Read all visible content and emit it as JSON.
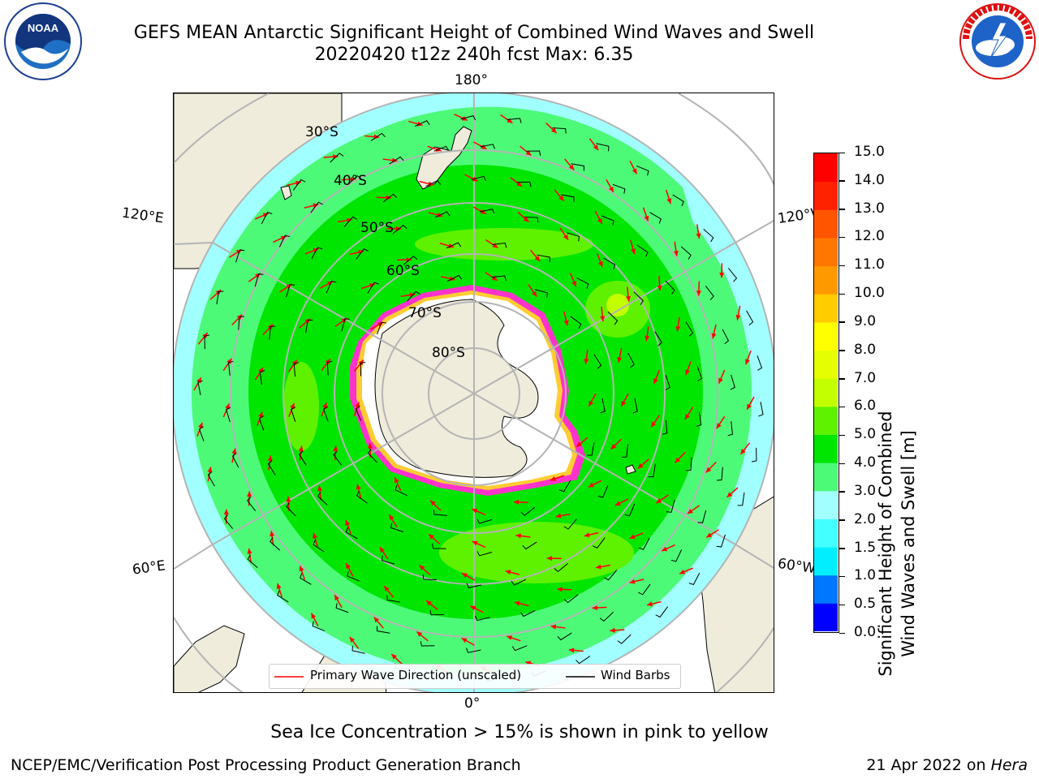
{
  "title": {
    "line1": "GEFS MEAN Antarctic Significant Height of Combined Wind Waves and Swell",
    "line2": "20220420 t12z 240h fcst   Max: 6.35"
  },
  "logos": {
    "left": {
      "icon": "noaa-logo-icon",
      "text": "NOAA",
      "ring_text": "NATIONAL OCEANIC AND ATMOSPHERIC ADMINISTRATION · U.S. DEPARTMENT OF COMMERCE"
    },
    "right": {
      "icon": "nws-logo-icon",
      "ring_text": "NATIONAL WEATHER SERVICE"
    }
  },
  "map": {
    "projection": "south-polar-stereographic",
    "longitude_labels": {
      "top": "180°",
      "left_upper": "120°E",
      "right_upper": "120°W",
      "left_lower": "60°E",
      "right_lower": "60°W",
      "bottom": "0°"
    },
    "latitude_labels": [
      "30°S",
      "40°S",
      "50°S",
      "60°S",
      "70°S",
      "80°S"
    ],
    "colors": {
      "land": "#efecdc",
      "ice_shelf": "#ffffff",
      "grid": "#b4b4b4",
      "coast": "#000000",
      "wave_arrow": "#ff0000",
      "sea_ice": "#ff33cc"
    }
  },
  "legend": {
    "wave_direction": "Primary Wave Direction (unscaled)",
    "wind_barbs": "Wind Barbs",
    "wave_color": "#ff0000",
    "barb_color": "#000000"
  },
  "colorbar": {
    "label_line1": "Significant Height of Combined",
    "label_line2": "Wind Waves and Swell [m]",
    "ticks": [
      "0.0",
      "0.5",
      "1.0",
      "1.5",
      "2.0",
      "3.0",
      "4.0",
      "5.0",
      "6.0",
      "7.0",
      "8.0",
      "9.0",
      "10.0",
      "11.0",
      "12.0",
      "13.0",
      "14.0",
      "15.0"
    ],
    "colors": [
      "#0000ff",
      "#0077ff",
      "#00eeff",
      "#44ffff",
      "#a2ffff",
      "#4dfa78",
      "#00e600",
      "#5ef200",
      "#c4ff00",
      "#e6ff00",
      "#ffff00",
      "#ffcc00",
      "#ff9900",
      "#ff7700",
      "#ff5500",
      "#ff2200",
      "#ff0000"
    ]
  },
  "sea_ice_note": "Sea Ice Concentration > 15% is shown in pink to yellow",
  "footer": {
    "left": "NCEP/EMC/Verification Post Processing Product Generation Branch",
    "right_prefix": "21 Apr 2022 on ",
    "right_host": "Hera"
  }
}
